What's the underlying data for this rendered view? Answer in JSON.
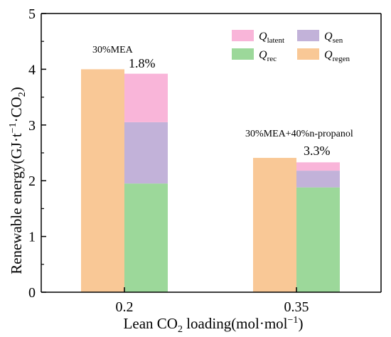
{
  "chart_data": {
    "type": "bar",
    "categories": [
      "0.2",
      "0.35"
    ],
    "x_title": "Lean CO2 loading(mol·mol⁻¹)",
    "y_title": "Renewable energy(GJ·t⁻¹·CO₂)",
    "ylim": [
      0,
      5
    ],
    "yticks": [
      0,
      1,
      2,
      3,
      4,
      5
    ],
    "grid": false,
    "legend_position": "top-right",
    "series": [
      {
        "name": "Q_regen",
        "key": "regen",
        "color": "#F9C896",
        "values": [
          4.0,
          2.41
        ]
      },
      {
        "name": "Q_rec",
        "key": "rec",
        "color": "#9CD89A",
        "values": [
          1.95,
          1.88
        ]
      },
      {
        "name": "Q_sen",
        "key": "sen",
        "color": "#C2B2D9",
        "values": [
          1.1,
          0.3
        ]
      },
      {
        "name": "Q_latent",
        "key": "latent",
        "color": "#F9B5D9",
        "values": [
          0.87,
          0.15
        ]
      }
    ],
    "legend": [
      {
        "key": "latent",
        "base": "Q",
        "sub": "latent",
        "color": "#F9B5D9"
      },
      {
        "key": "sen",
        "base": "Q",
        "sub": "sen",
        "color": "#C2B2D9"
      },
      {
        "key": "rec",
        "base": "Q",
        "sub": "rec",
        "color": "#9CD89A"
      },
      {
        "key": "regen",
        "base": "Q",
        "sub": "regen",
        "color": "#F9C896"
      }
    ],
    "annotations": [
      {
        "label": "30%MEA",
        "category": "0.2"
      },
      {
        "label": "30%MEA+40%n-propanol",
        "category": "0.35"
      }
    ],
    "percent_labels": [
      "1.8%",
      "3.3%"
    ]
  }
}
